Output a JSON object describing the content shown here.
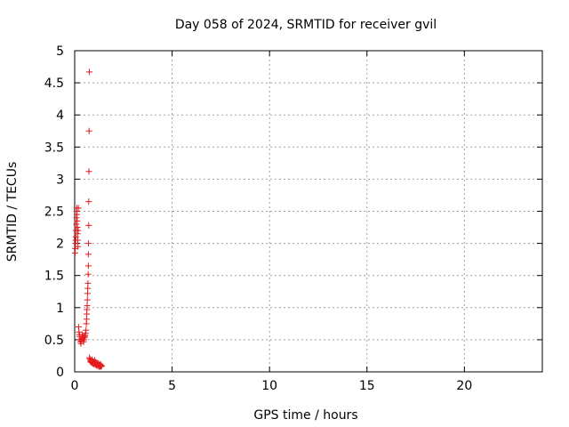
{
  "chart_data": {
    "type": "scatter",
    "title": "Day 058 of 2024, SRMTID for receiver gvil",
    "xlabel": "GPS time / hours",
    "ylabel": "SRMTID / TECUs",
    "xlim": [
      0,
      24
    ],
    "ylim": [
      0,
      5
    ],
    "xticks": [
      "0",
      "5",
      "10",
      "15",
      "20"
    ],
    "yticks": [
      "0",
      "0.5",
      "1",
      "1.5",
      "2",
      "2.5",
      "3",
      "3.5",
      "4",
      "4.5",
      "5"
    ],
    "grid": true,
    "marker": "+",
    "series_color": "#e41a1c",
    "series": [
      {
        "x": [
          0.02,
          0.03,
          0.04,
          0.05,
          0.06,
          0.07,
          0.08,
          0.09,
          0.1,
          0.11,
          0.12,
          0.13,
          0.14,
          0.15,
          0.16,
          0.17,
          0.18,
          0.19,
          0.2,
          0.22,
          0.24,
          0.26,
          0.28,
          0.3,
          0.32,
          0.34,
          0.36,
          0.38,
          0.4,
          0.42,
          0.44,
          0.46,
          0.48,
          0.5,
          0.52,
          0.54,
          0.56,
          0.58,
          0.6,
          0.61,
          0.62,
          0.63,
          0.64,
          0.65,
          0.66,
          0.67,
          0.68,
          0.69,
          0.7,
          0.7,
          0.71,
          0.72,
          0.72,
          0.73,
          0.74,
          0.75,
          0.76,
          0.78,
          0.8,
          0.82,
          0.84,
          0.86,
          0.88,
          0.9,
          0.92,
          0.94,
          0.96,
          0.98,
          1.0,
          1.02,
          1.04,
          1.06,
          1.08,
          1.1,
          1.12,
          1.14,
          1.16,
          1.18,
          1.2,
          1.22,
          1.24,
          1.26,
          1.28,
          1.3,
          1.32,
          1.34,
          1.36,
          1.38
        ],
        "y": [
          1.85,
          1.92,
          2.0,
          2.05,
          2.1,
          2.2,
          2.3,
          2.4,
          2.5,
          2.55,
          2.45,
          2.35,
          2.25,
          2.15,
          2.05,
          1.95,
          2.2,
          2.55,
          0.7,
          0.62,
          0.58,
          0.55,
          0.5,
          0.47,
          0.44,
          0.48,
          0.52,
          0.55,
          0.58,
          0.53,
          0.5,
          0.47,
          0.5,
          0.53,
          0.55,
          0.57,
          0.6,
          0.65,
          0.75,
          0.82,
          0.9,
          0.97,
          1.03,
          1.12,
          1.22,
          1.3,
          1.38,
          1.52,
          1.65,
          1.83,
          2.0,
          2.28,
          2.65,
          3.12,
          3.75,
          4.67,
          0.22,
          0.2,
          0.18,
          0.16,
          0.15,
          0.17,
          0.14,
          0.19,
          0.15,
          0.13,
          0.16,
          0.12,
          0.14,
          0.18,
          0.13,
          0.11,
          0.15,
          0.12,
          0.1,
          0.14,
          0.12,
          0.09,
          0.11,
          0.13,
          0.1,
          0.08,
          0.11,
          0.09,
          0.12,
          0.08,
          0.1,
          0.09
        ]
      }
    ]
  }
}
